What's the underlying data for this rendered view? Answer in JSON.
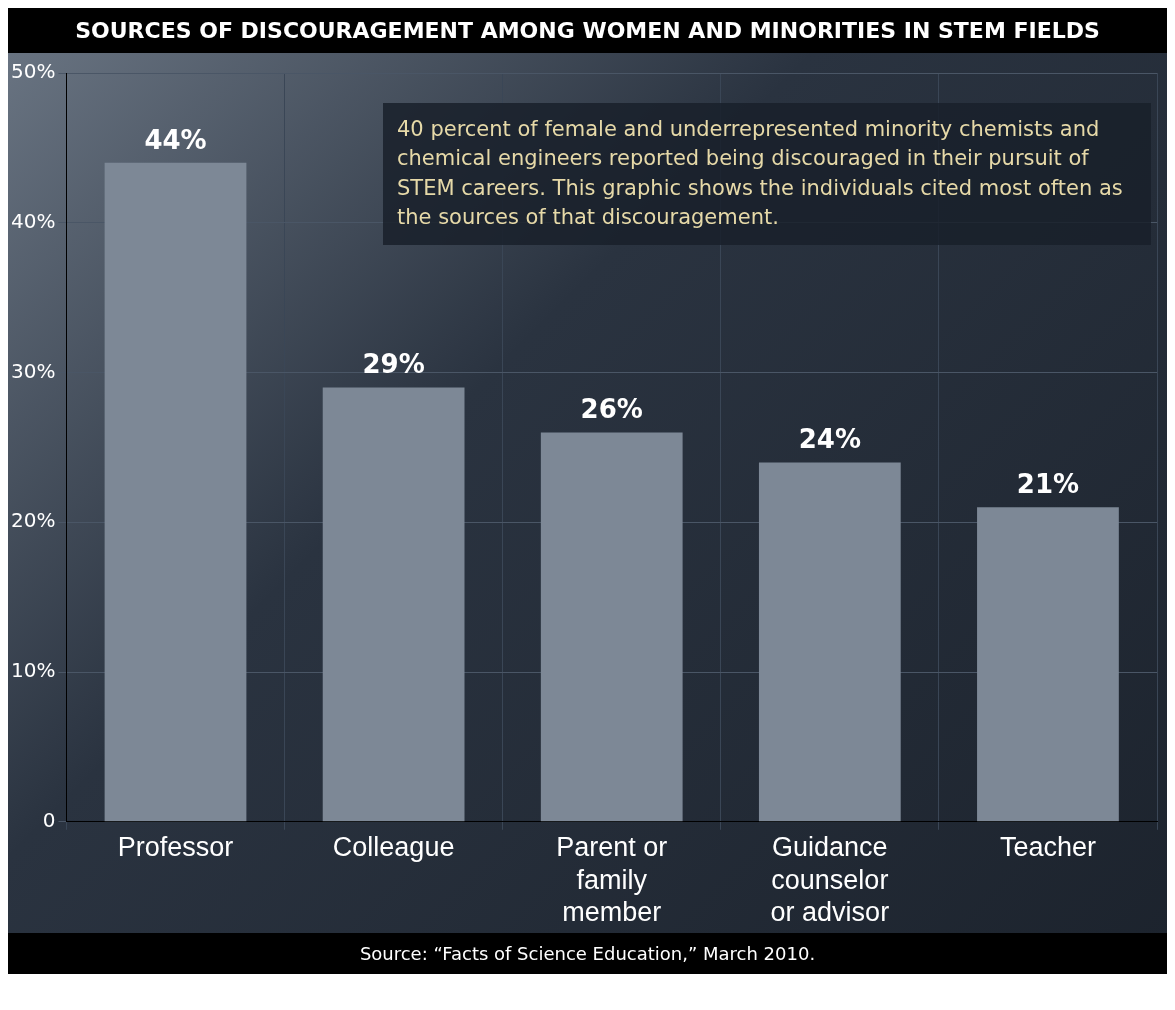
{
  "chart_data": {
    "type": "bar",
    "title": "SOURCES OF DISCOURAGEMENT AMONG WOMEN AND MINORITIES IN STEM FIELDS",
    "categories": [
      "Professor",
      "Colleague",
      "Parent or family member",
      "Guidance counselor or advisor",
      "Teacher"
    ],
    "values": [
      44,
      29,
      26,
      24,
      21
    ],
    "value_labels": [
      "44%",
      "29%",
      "26%",
      "24%",
      "21%"
    ],
    "color": "#7d8896",
    "ylim": [
      0,
      50
    ],
    "yticks": [
      0,
      {
        "value": 10,
        "label": "10%"
      },
      {
        "value": 20,
        "label": "20%"
      },
      {
        "value": 30,
        "label": "30%"
      },
      {
        "value": 40,
        "label": "40%"
      },
      {
        "value": 50,
        "label": "50%"
      }
    ],
    "grid": true,
    "annotations": [
      "40 percent of female and underrepresented minority chemists and chemical engineers reported being discouraged in their pursuit of STEM careers. This graphic shows the individuals cited most often as the sources of that discouragement.",
      "Source: “Facts of Science Education,” March 2010."
    ]
  }
}
